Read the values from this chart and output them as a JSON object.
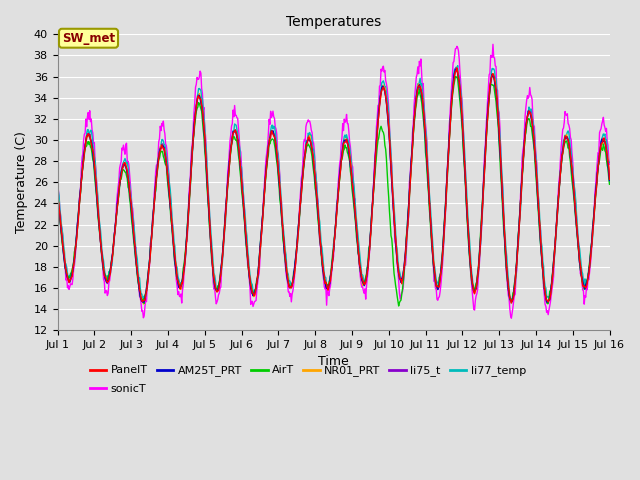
{
  "title": "Temperatures",
  "xlabel": "Time",
  "ylabel": "Temperature (C)",
  "ylim": [
    12,
    40
  ],
  "xlim": [
    0,
    15
  ],
  "x_tick_labels": [
    "Jul 1",
    "Jul 2",
    "Jul 3",
    "Jul 4",
    "Jul 5",
    "Jul 6",
    "Jul 7",
    "Jul 8",
    "Jul 9",
    "Jul 10",
    "Jul 11",
    "Jul 12",
    "Jul 13",
    "Jul 14",
    "Jul 15",
    "Jul 16"
  ],
  "annotation_text": "SW_met",
  "annotation_box_color": "#FFFF99",
  "annotation_text_color": "#880000",
  "annotation_border_color": "#999900",
  "series": {
    "PanelT": {
      "color": "#FF0000",
      "lw": 1.0
    },
    "AM25T_PRT": {
      "color": "#0000CC",
      "lw": 1.0
    },
    "AirT": {
      "color": "#00CC00",
      "lw": 1.0
    },
    "NR01_PRT": {
      "color": "#FFA500",
      "lw": 1.0
    },
    "li75_t": {
      "color": "#8800CC",
      "lw": 1.0
    },
    "li77_temp": {
      "color": "#00BBBB",
      "lw": 1.0
    },
    "sonicT": {
      "color": "#FF00FF",
      "lw": 1.0
    }
  },
  "bg_color": "#E0E0E0",
  "plot_bg_color": "#E0E0E0",
  "grid_color": "#FFFFFF",
  "title_fontsize": 10,
  "label_fontsize": 9,
  "tick_fontsize": 8,
  "legend_fontsize": 8
}
